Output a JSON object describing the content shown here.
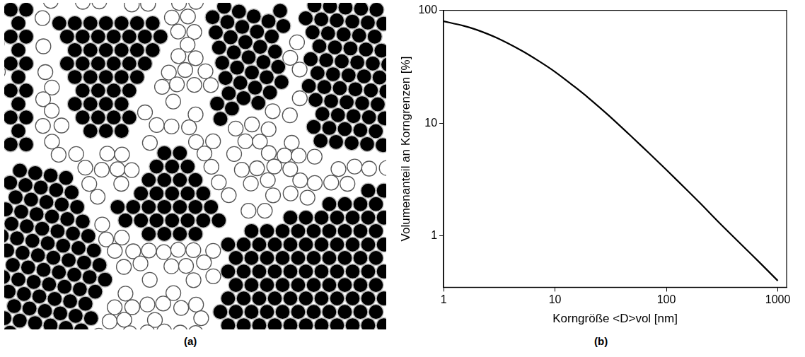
{
  "panel_labels": [
    "(a)",
    "(b)"
  ],
  "chart_data": {
    "type": "line",
    "x_label": "Korngröße <D>vol [nm]",
    "y_label": "Volumenanteil an Korngrenzen [%]",
    "x": [
      1,
      1.5,
      2,
      3,
      5,
      7,
      10,
      15,
      20,
      30,
      50,
      70,
      100,
      150,
      200,
      300,
      500,
      700,
      1000
    ],
    "values": [
      80,
      73,
      67,
      57,
      44,
      36,
      28.5,
      21,
      16.7,
      11.8,
      7.4,
      5.4,
      3.85,
      2.6,
      1.96,
      1.3,
      0.79,
      0.57,
      0.4
    ],
    "color": "#000000",
    "log": true,
    "grid": false,
    "xlim": [
      1,
      1200
    ],
    "xticks": [
      1,
      10,
      100,
      1000
    ],
    "ylim": [
      0.35,
      100
    ],
    "yticks": [
      1,
      10,
      100
    ]
  }
}
